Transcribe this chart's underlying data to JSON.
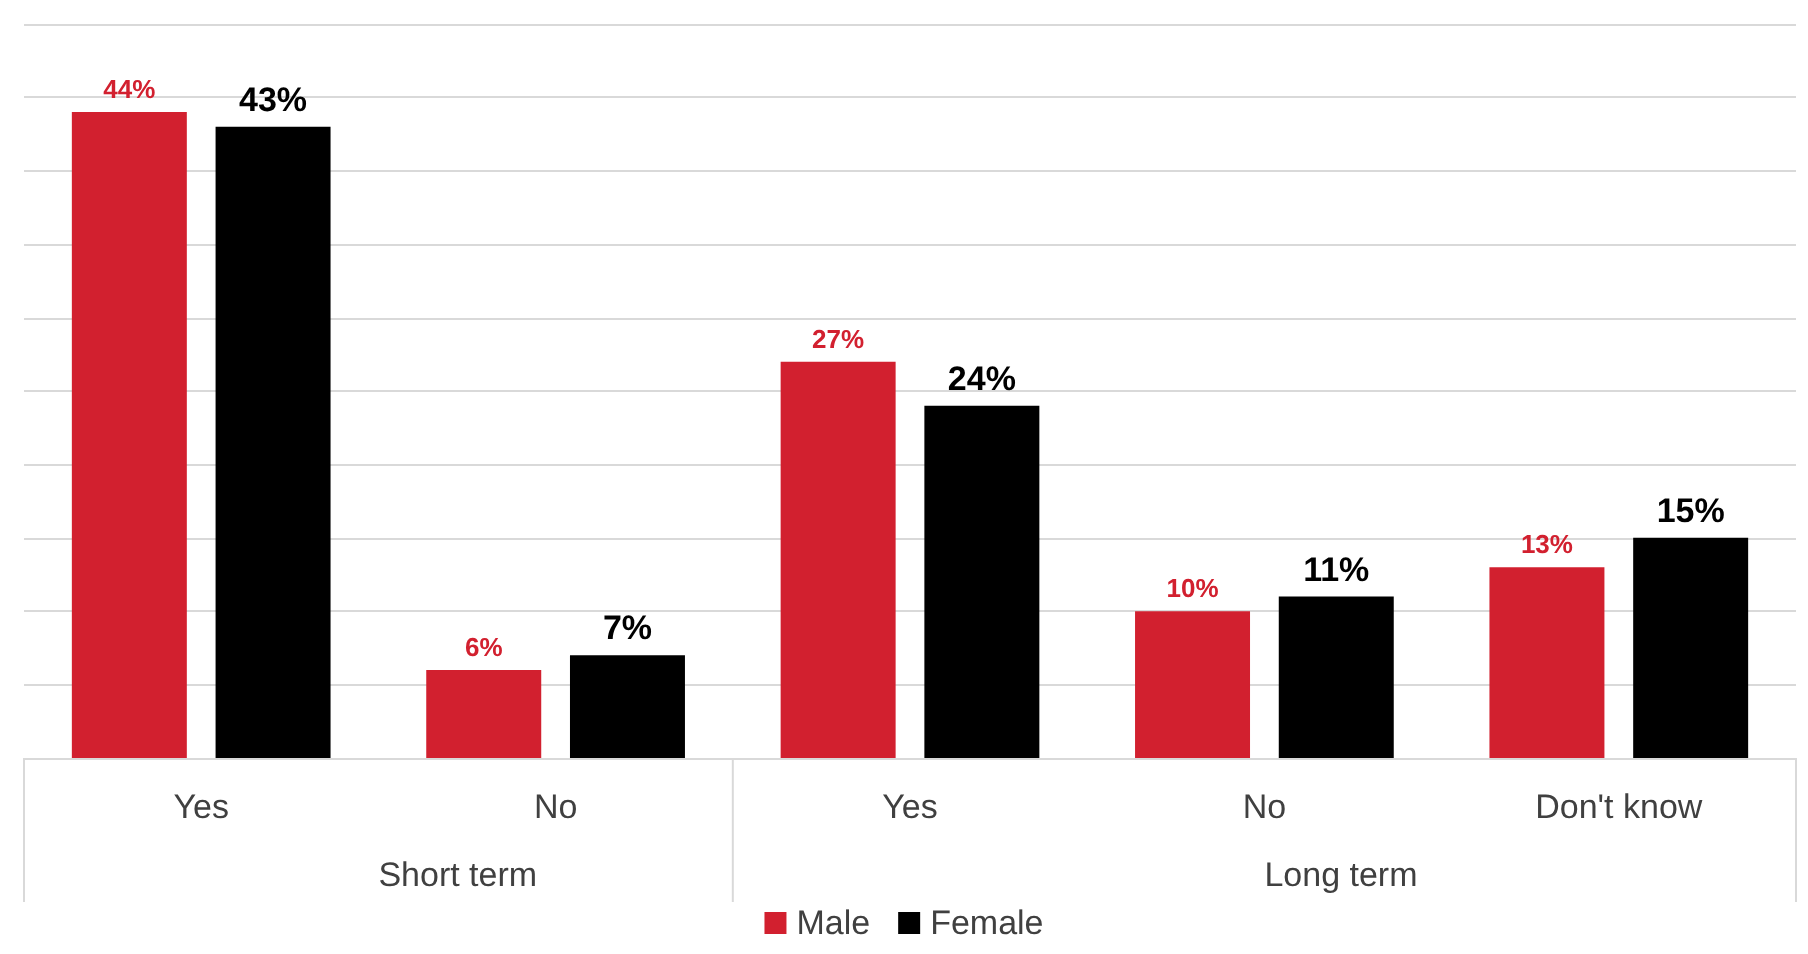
{
  "chart_data": {
    "type": "bar",
    "categories": [
      "Yes",
      "No",
      "Yes",
      "No",
      "Don't know"
    ],
    "series": [
      {
        "name": "Male",
        "color": "#d2202f",
        "values": [
          44,
          6,
          27,
          10,
          13
        ],
        "value_labels": [
          "44%",
          "6%",
          "27%",
          "10%",
          "13%"
        ]
      },
      {
        "name": "Female",
        "color": "#000000",
        "values": [
          43,
          7,
          24,
          11,
          15
        ],
        "value_labels": [
          "43%",
          "7%",
          "24%",
          "11%",
          "15%"
        ]
      }
    ],
    "annotations": [
      "Short term",
      "Long term"
    ],
    "ylim": [
      0,
      50
    ],
    "yticks": [
      {
        "value": 0,
        "label": null
      },
      {
        "value": 5,
        "label": null
      },
      {
        "value": 10,
        "label": null
      },
      {
        "value": 15,
        "label": null
      },
      {
        "value": 20,
        "label": null
      },
      {
        "value": 25,
        "label": null
      },
      {
        "value": 30,
        "label": null
      },
      {
        "value": 35,
        "label": null
      },
      {
        "value": 40,
        "label": null
      },
      {
        "value": 45,
        "label": null
      },
      {
        "value": 50,
        "label": null
      }
    ],
    "grid": "y",
    "legend": "bottom",
    "tick_labels": "x"
  }
}
